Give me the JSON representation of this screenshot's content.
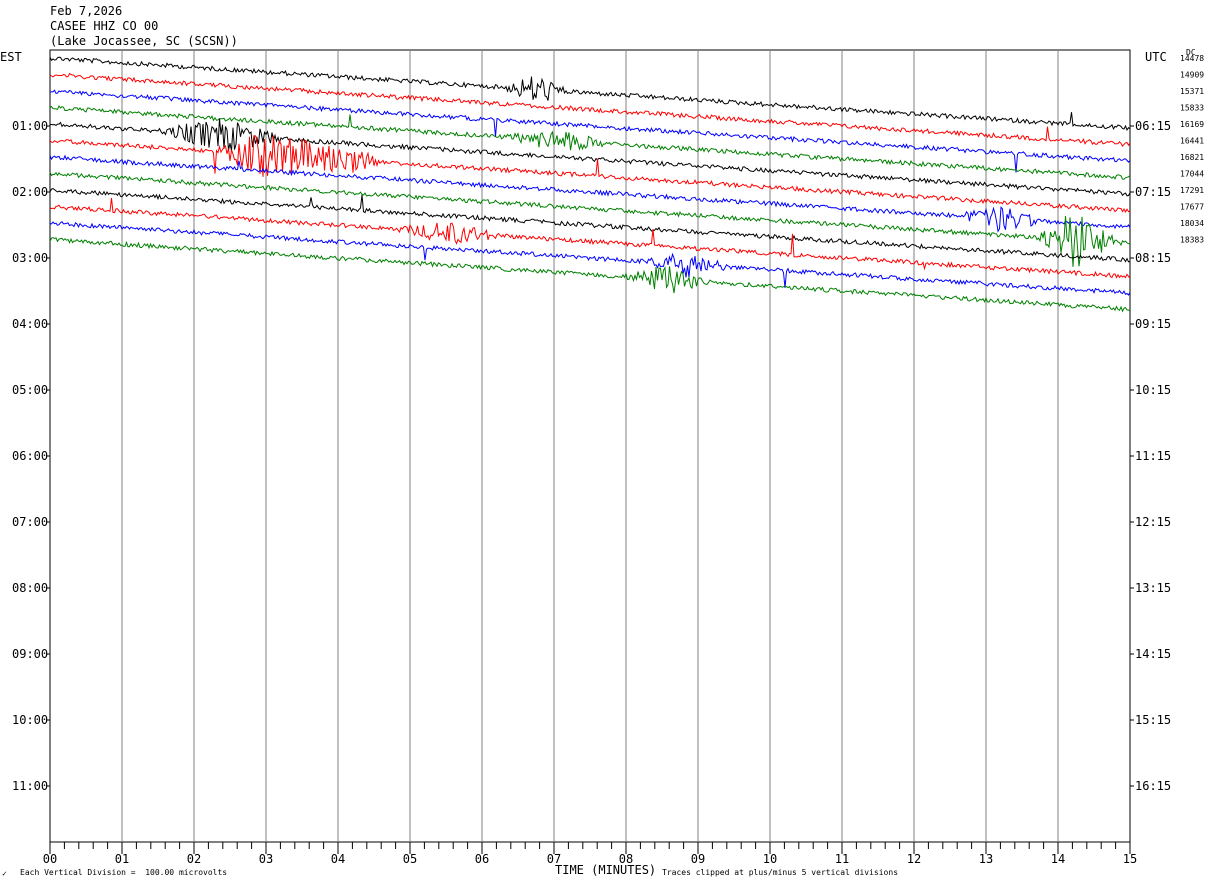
{
  "header": {
    "date": "Feb 7,2026",
    "station": "CASEE HHZ CO 00",
    "location": "(Lake Jocassee, SC (SCSN))"
  },
  "labels": {
    "left_tz": "EST",
    "right_tz": "UTC",
    "dc": "DC"
  },
  "footer": {
    "corner_mark": "✓",
    "vertical_division": "Each Vertical Division =  100.00 microvolts",
    "clipping": "Traces clipped at plus/minus 5 vertical divisions"
  },
  "chart_data": {
    "type": "line",
    "title": "",
    "xlabel": "TIME (MINUTES)",
    "ylabel": "",
    "xlim": [
      0,
      15
    ],
    "x_ticks": [
      "00",
      "01",
      "02",
      "03",
      "04",
      "05",
      "06",
      "07",
      "08",
      "09",
      "10",
      "11",
      "12",
      "13",
      "14",
      "15"
    ],
    "grid": true,
    "left_hour_labels": [
      "01:00",
      "02:00",
      "03:00",
      "04:00",
      "05:00",
      "06:00",
      "07:00",
      "08:00",
      "09:00",
      "10:00",
      "11:00"
    ],
    "right_hour_labels": [
      "06:15",
      "07:15",
      "08:15",
      "09:15",
      "10:15",
      "11:15",
      "12:15",
      "13:15",
      "14:15",
      "15:15",
      "16:15"
    ],
    "dc_offsets": [
      "14478",
      "14909",
      "15371",
      "15833",
      "16169",
      "16441",
      "16821",
      "17044",
      "17291",
      "17677",
      "18034",
      "18383"
    ],
    "trace_colors": [
      "#000000",
      "#ff0000",
      "#0000ff",
      "#008000"
    ],
    "trace_count": 12
  }
}
